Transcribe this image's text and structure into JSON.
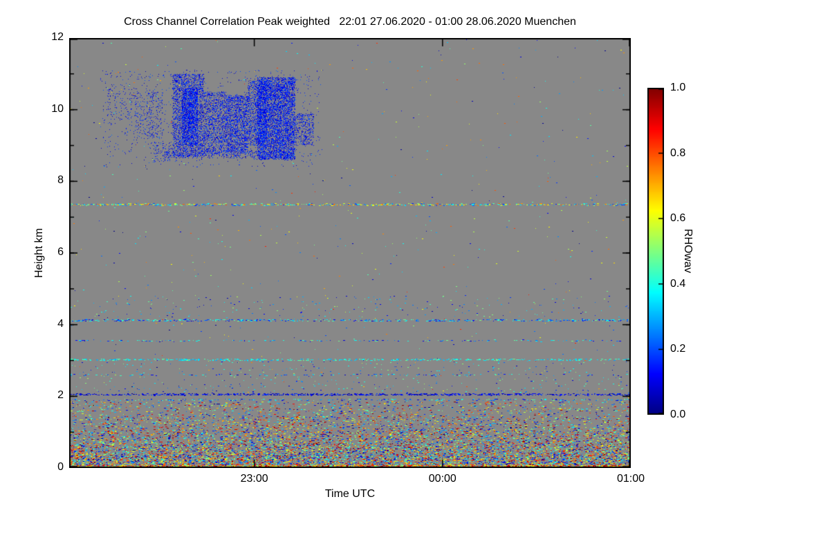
{
  "figure": {
    "background": "#ffffff"
  },
  "chart_data": {
    "type": "heatmap",
    "title": "Cross Channel Correlation Peak weighted   22:01 27.06.2020 - 01:00 28.06.2020 Muenchen",
    "xlabel": "Time UTC",
    "ylabel": "Height km",
    "station": "Muenchen",
    "time_start": "22:01 27.06.2020",
    "time_end": "01:00 28.06.2020",
    "no_data_color": "#888888",
    "axis_color": "#000000",
    "x_axis": {
      "range_minutes": [
        0,
        179
      ],
      "ticks": [
        {
          "label": "23:00",
          "minute": 59
        },
        {
          "label": "00:00",
          "minute": 119
        },
        {
          "label": "01:00",
          "minute": 179
        }
      ]
    },
    "y_axis": {
      "range_km": [
        0,
        12
      ],
      "ticks": [
        0,
        2,
        4,
        6,
        8,
        10,
        12
      ],
      "tick_labels": [
        "0",
        "2",
        "4",
        "6",
        "8",
        "10",
        "12"
      ],
      "minor_every_km": 1
    },
    "colorbar": {
      "label": "RHOwav",
      "colormap": "jet",
      "range": [
        0,
        1
      ],
      "tick_values": [
        0,
        0.2,
        0.4,
        0.6,
        0.8,
        1
      ],
      "tick_labels": [
        "0.0",
        "0.2",
        "0.4",
        "0.6",
        "0.8",
        "1.0"
      ]
    },
    "features": {
      "cloud": {
        "description": "cirrus cloud echo 8.4-11.1 km, 22:13-23:20 UTC, low correlation (blue)",
        "value_range": [
          0.05,
          0.22
        ],
        "blobs": [
          {
            "t0": 12,
            "t1": 22,
            "h0": 9.7,
            "h1": 10.6,
            "density": 0.06
          },
          {
            "t0": 21,
            "t1": 30,
            "h0": 9.2,
            "h1": 10.5,
            "density": 0.1
          },
          {
            "t0": 26,
            "t1": 33,
            "h0": 8.55,
            "h1": 9.1,
            "density": 0.1
          },
          {
            "t0": 33,
            "t1": 43,
            "h0": 8.7,
            "h1": 11.0,
            "density": 0.45
          },
          {
            "t0": 36,
            "t1": 41,
            "h0": 9.0,
            "h1": 10.6,
            "density": 0.75
          },
          {
            "t0": 43,
            "t1": 50,
            "h0": 8.8,
            "h1": 10.5,
            "density": 0.4
          },
          {
            "t0": 50,
            "t1": 57,
            "h0": 8.8,
            "h1": 10.4,
            "density": 0.55
          },
          {
            "t0": 57,
            "t1": 63,
            "h0": 9.0,
            "h1": 10.8,
            "density": 0.45
          },
          {
            "t0": 60,
            "t1": 72,
            "h0": 8.6,
            "h1": 10.9,
            "density": 0.75
          },
          {
            "t0": 72,
            "t1": 78,
            "h0": 9.0,
            "h1": 9.9,
            "density": 0.3
          },
          {
            "t0": 30,
            "t1": 72,
            "h0": 8.65,
            "h1": 8.85,
            "density": 0.25
          },
          {
            "t0": 10,
            "t1": 80,
            "h0": 8.4,
            "h1": 11.1,
            "density": 0.02
          }
        ]
      },
      "layer_lines": [
        {
          "height_km": 7.35,
          "thickness_km": 0.05,
          "density": 0.55,
          "value_range": [
            0.15,
            0.8
          ]
        },
        {
          "height_km": 4.12,
          "thickness_km": 0.06,
          "density": 0.4,
          "value_range": [
            0.08,
            0.5
          ]
        },
        {
          "height_km": 3.55,
          "thickness_km": 0.04,
          "density": 0.18,
          "value_range": [
            0.08,
            0.5
          ]
        },
        {
          "height_km": 3.02,
          "thickness_km": 0.05,
          "density": 0.45,
          "value_range": [
            0.28,
            0.5
          ]
        },
        {
          "height_km": 2.6,
          "thickness_km": 0.04,
          "density": 0.12,
          "value_range": [
            0.05,
            0.45
          ]
        },
        {
          "height_km": 2.05,
          "thickness_km": 0.05,
          "density": 0.65,
          "value_range": [
            0.02,
            0.2
          ]
        },
        {
          "height_km": 1.9,
          "thickness_km": 0.04,
          "density": 0.3,
          "value_range": [
            0.05,
            0.5
          ]
        }
      ],
      "scatter_noise": [
        {
          "t0": 0,
          "t1": 179,
          "h0": 4.2,
          "h1": 4.8,
          "density": 0.012,
          "value_range": [
            0.05,
            0.55
          ]
        },
        {
          "t0": 0,
          "t1": 179,
          "h0": 2.1,
          "h1": 3.0,
          "density": 0.015,
          "value_range": [
            0.05,
            0.55
          ]
        },
        {
          "t0": 0,
          "t1": 179,
          "h0": 1.85,
          "h1": 12.0,
          "density": 0.0022,
          "value_range": [
            0.0,
            0.85
          ]
        }
      ],
      "boundary_layer_bands": [
        {
          "h0": 1.45,
          "h1": 1.85,
          "density": 0.1,
          "value_range": [
            0,
            1
          ]
        },
        {
          "h0": 1.05,
          "h1": 1.45,
          "density": 0.17,
          "value_range": [
            0,
            1
          ]
        },
        {
          "h0": 0.65,
          "h1": 1.05,
          "density": 0.28,
          "value_range": [
            0,
            1
          ]
        },
        {
          "h0": 0.35,
          "h1": 0.65,
          "density": 0.42,
          "value_range": [
            0,
            1
          ]
        },
        {
          "h0": 0.08,
          "h1": 0.35,
          "density": 0.58,
          "value_range": [
            0,
            1
          ]
        },
        {
          "h0": 0.0,
          "h1": 0.08,
          "density": 0.95,
          "value_range": [
            0.45,
            1
          ]
        }
      ]
    }
  }
}
